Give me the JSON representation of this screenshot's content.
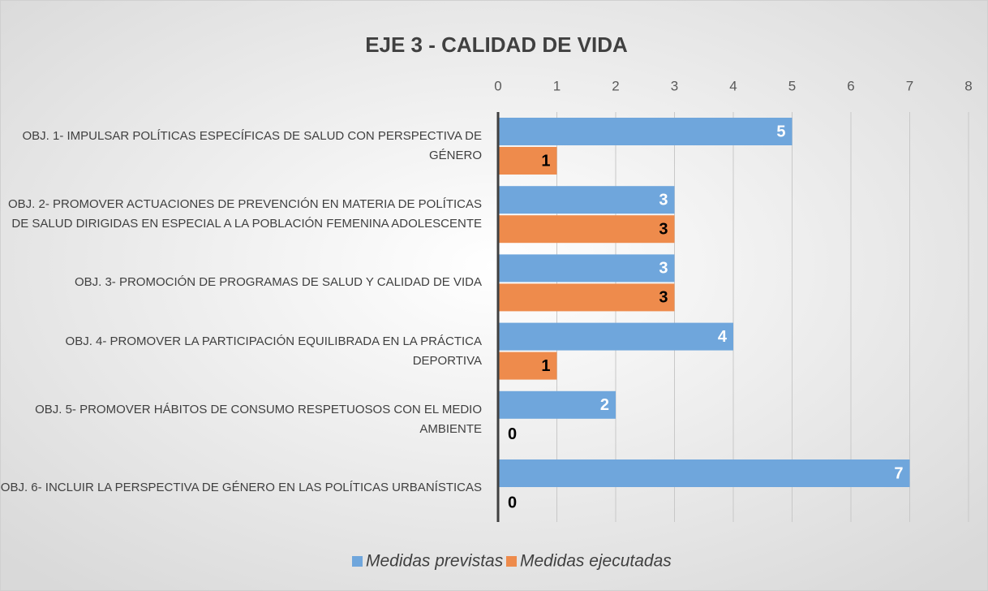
{
  "chart_data": {
    "type": "hbar",
    "title": "EJE 3 - CALIDAD DE VIDA",
    "categories": [
      "OBJ. 1- IMPULSAR POLÍTICAS ESPECÍFICAS DE SALUD CON PERSPECTIVA DE GÉNERO",
      "OBJ. 2- PROMOVER ACTUACIONES DE PREVENCIÓN EN MATERIA DE POLÍTICAS DE SALUD DIRIGIDAS EN ESPECIAL A LA POBLACIÓN FEMENINA ADOLESCENTE",
      "OBJ. 3- PROMOCIÓN DE PROGRAMAS DE SALUD Y CALIDAD DE VIDA",
      "OBJ. 4- PROMOVER LA PARTICIPACIÓN EQUILIBRADA EN LA PRÁCTICA DEPORTIVA",
      "OBJ. 5- PROMOVER HÁBITOS DE CONSUMO RESPETUOSOS CON EL MEDIO AMBIENTE",
      "OBJ. 6- INCLUIR LA PERSPECTIVA DE GÉNERO EN LAS POLÍTICAS URBANÍSTICAS"
    ],
    "series": [
      {
        "name": "Medidas previstas",
        "color": "#6fa6dc",
        "values": [
          5,
          3,
          3,
          4,
          2,
          7
        ]
      },
      {
        "name": "Medidas ejecutadas",
        "color": "#ee8b4c",
        "values": [
          1,
          3,
          3,
          1,
          0,
          0
        ]
      }
    ],
    "xlim": [
      0,
      8
    ],
    "xticks": [
      0,
      1,
      2,
      3,
      4,
      5,
      6,
      7,
      8
    ],
    "grid": true,
    "legend": "bottom"
  }
}
